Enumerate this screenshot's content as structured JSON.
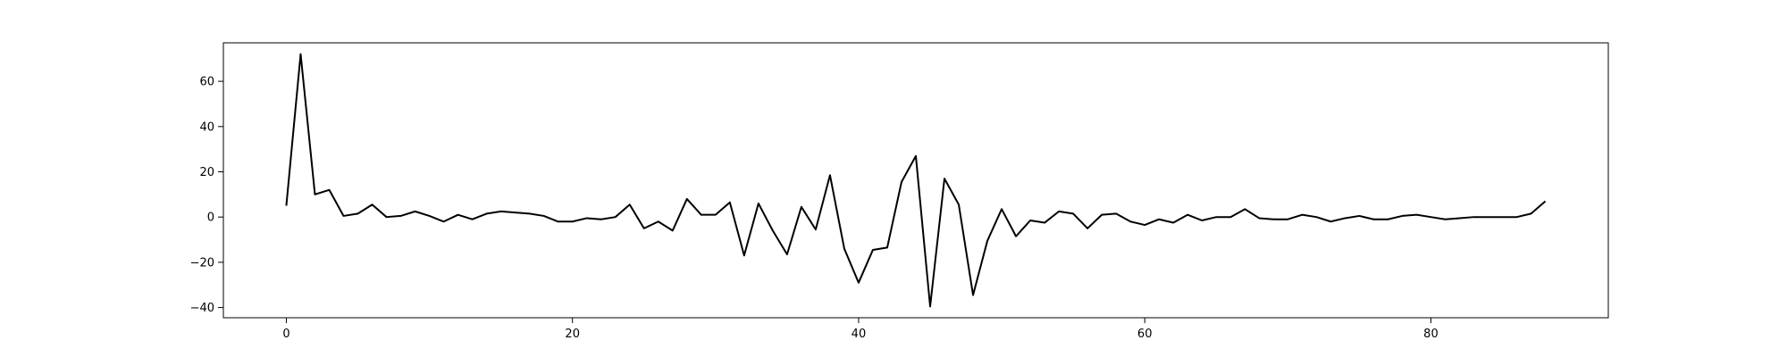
{
  "chart_data": {
    "type": "line",
    "title": "",
    "xlabel": "",
    "ylabel": "",
    "xlim": [
      -4.4,
      92.4
    ],
    "ylim": [
      -44.5,
      77.0
    ],
    "x_ticks": [
      0,
      20,
      40,
      60,
      80
    ],
    "y_ticks": [
      -40,
      -20,
      0,
      20,
      40,
      60
    ],
    "grid": false,
    "line_color": "#000000",
    "series": [
      {
        "x": [
          0,
          1,
          2,
          3,
          4,
          5,
          6,
          7,
          8,
          9,
          10,
          11,
          12,
          13,
          14,
          15,
          16,
          17,
          18,
          19,
          20,
          21,
          22,
          23,
          24,
          25,
          26,
          27,
          28,
          29,
          30,
          31,
          32,
          33,
          34,
          35,
          36,
          37,
          38,
          39,
          40,
          41,
          42,
          43,
          44,
          45,
          46,
          47,
          48,
          49,
          50,
          51,
          52,
          53,
          54,
          55,
          56,
          57,
          58,
          59,
          60,
          61,
          62,
          63,
          64,
          65,
          66,
          67,
          68,
          69,
          70,
          71,
          72,
          73,
          74,
          75,
          76,
          77,
          78,
          79,
          80,
          81,
          82,
          83,
          84,
          85,
          86,
          87,
          88
        ],
        "values": [
          5,
          72,
          10,
          12,
          0.5,
          1.5,
          5.5,
          0,
          0.5,
          2.5,
          0.5,
          -2,
          1,
          -1,
          1.5,
          2.5,
          2,
          1.5,
          0.5,
          -2,
          -2,
          -0.5,
          -1,
          0,
          5.5,
          -5,
          -2,
          -6,
          8,
          1,
          1,
          6.5,
          -17,
          6,
          -6,
          -16.5,
          4.5,
          -5.5,
          18.5,
          -14,
          -29,
          -14.5,
          -13.5,
          15.5,
          27,
          -39.5,
          17,
          5.5,
          -34.5,
          -10.5,
          3.5,
          -8.5,
          -1.5,
          -2.5,
          2.5,
          1.5,
          -5,
          1,
          1.5,
          -2,
          -3.5,
          -1,
          -2.5,
          1,
          -1.5,
          0,
          0,
          3.5,
          -0.5,
          -1,
          -1,
          1,
          0,
          -2,
          -0.5,
          0.5,
          -1,
          -1,
          0.5,
          1,
          0,
          -1,
          -0.5,
          0,
          0,
          0,
          0,
          1.5,
          7
        ]
      }
    ]
  }
}
